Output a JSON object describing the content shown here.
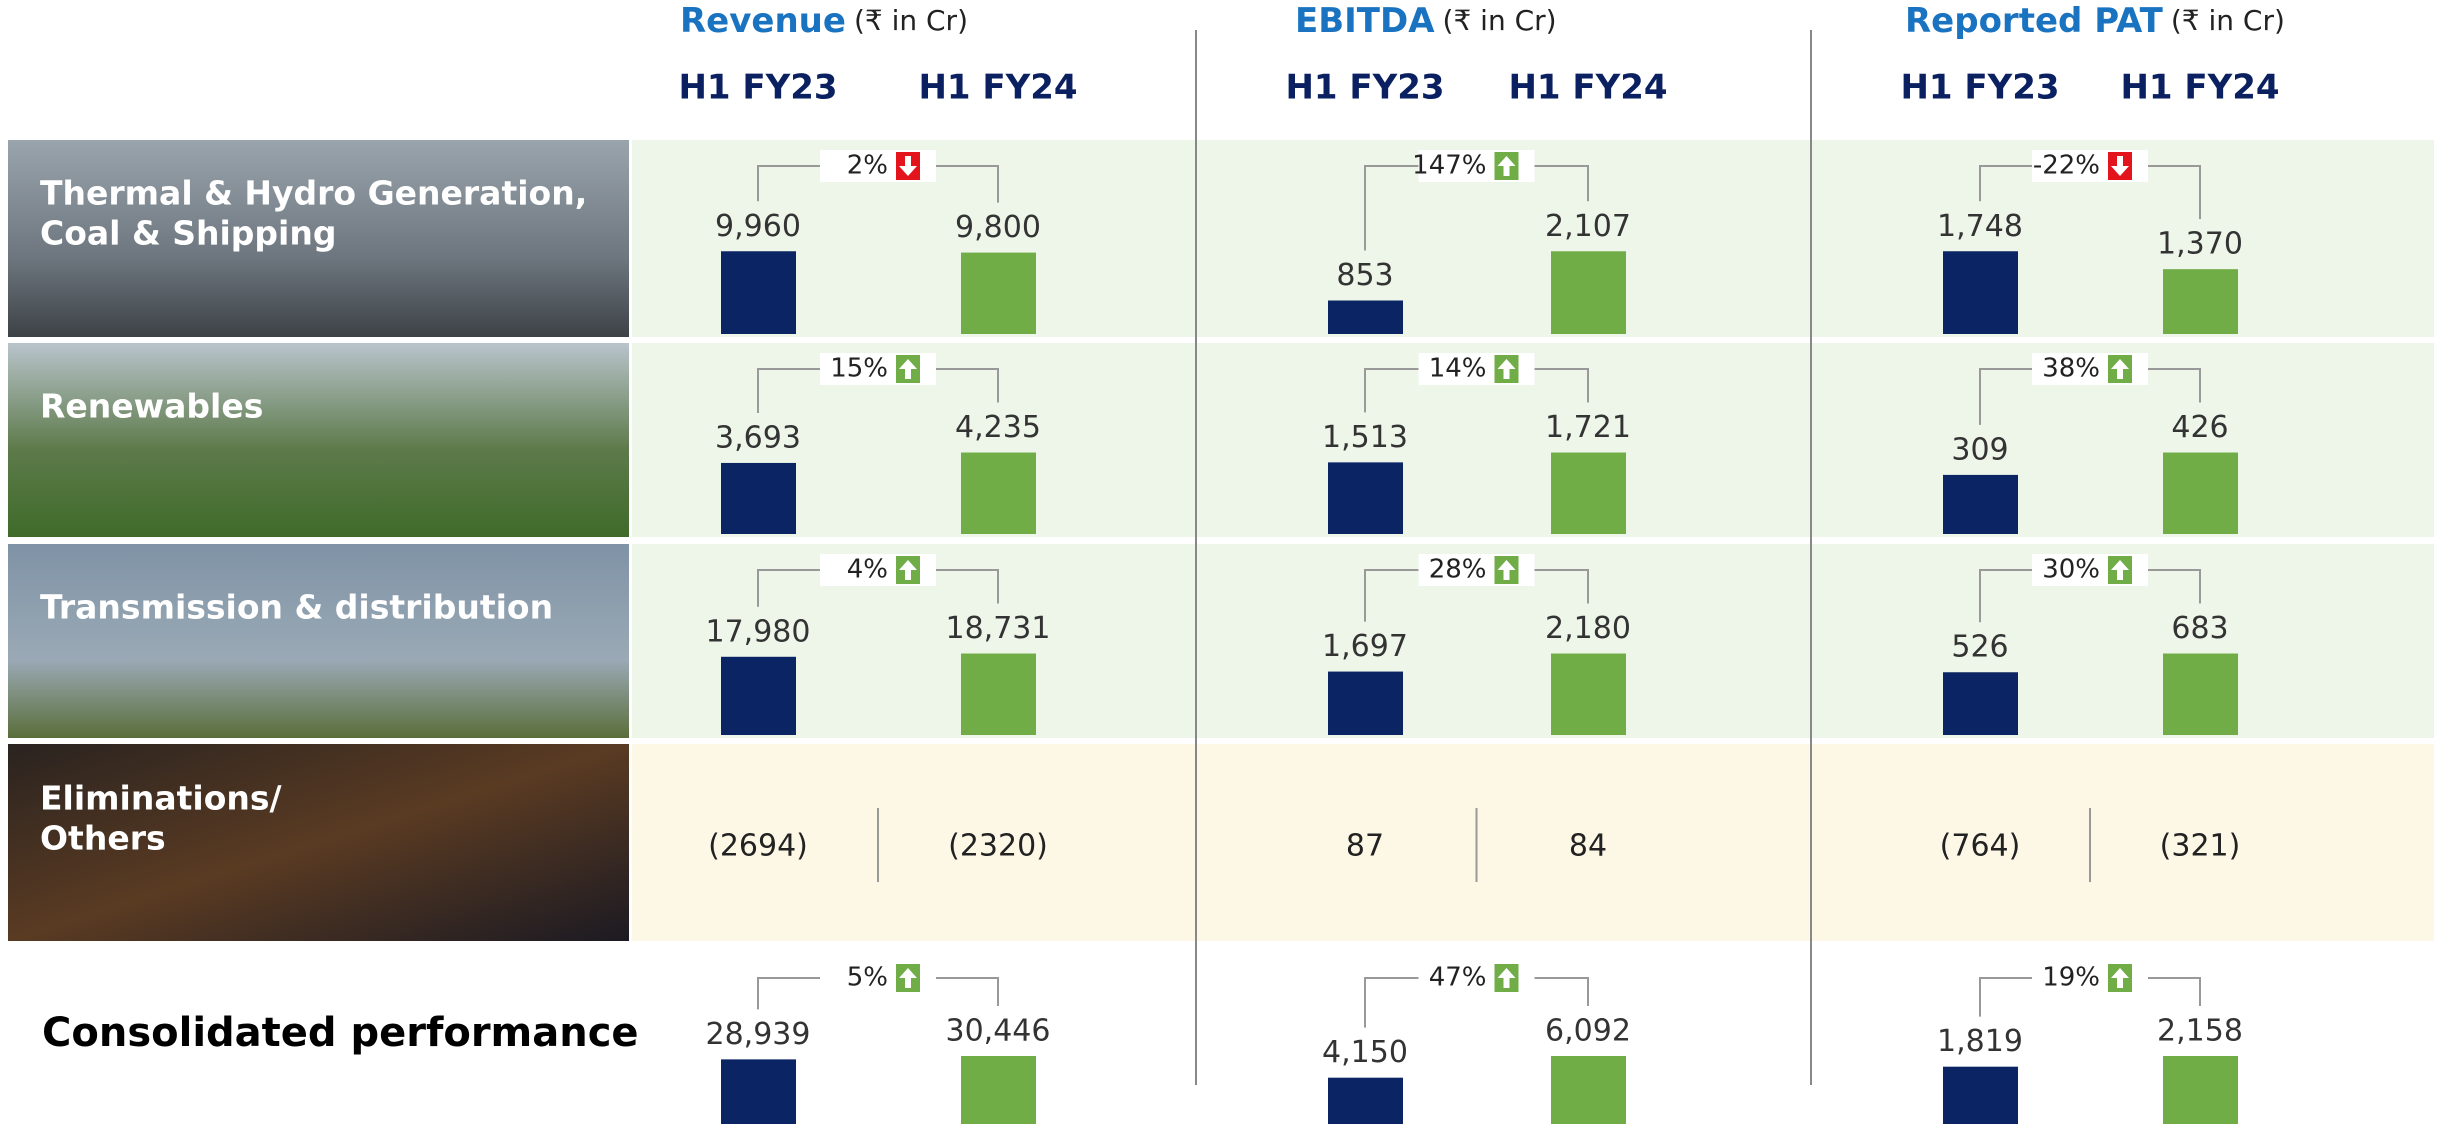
{
  "columns": [
    {
      "title": "Revenue",
      "unit": "(₹ in Cr)",
      "periods": [
        "H1 FY23",
        "H1 FY24"
      ]
    },
    {
      "title": "EBITDA",
      "unit": "(₹ in Cr)",
      "periods": [
        "H1 FY23",
        "H1 FY24"
      ]
    },
    {
      "title": "Reported PAT",
      "unit": "(₹ in Cr)",
      "periods": [
        "H1 FY23",
        "H1 FY24"
      ]
    }
  ],
  "segments": [
    {
      "label": [
        "Thermal & Hydro Generation,",
        "Coal & Shipping"
      ],
      "metrics": [
        {
          "values": [
            9960,
            9800
          ],
          "value_labels": [
            "9,960",
            "9,800"
          ],
          "change": "2%",
          "direction": "down"
        },
        {
          "values": [
            853,
            2107
          ],
          "value_labels": [
            "853",
            "2,107"
          ],
          "change": "147%",
          "direction": "up"
        },
        {
          "values": [
            1748,
            1370
          ],
          "value_labels": [
            "1,748",
            "1,370"
          ],
          "change": "-22%",
          "direction": "down"
        }
      ]
    },
    {
      "label": [
        "Renewables"
      ],
      "metrics": [
        {
          "values": [
            3693,
            4235
          ],
          "value_labels": [
            "3,693",
            "4,235"
          ],
          "change": "15%",
          "direction": "up"
        },
        {
          "values": [
            1513,
            1721
          ],
          "value_labels": [
            "1,513",
            "1,721"
          ],
          "change": "14%",
          "direction": "up"
        },
        {
          "values": [
            309,
            426
          ],
          "value_labels": [
            "309",
            "426"
          ],
          "change": "38%",
          "direction": "up"
        }
      ]
    },
    {
      "label": [
        "Transmission & distribution"
      ],
      "metrics": [
        {
          "values": [
            17980,
            18731
          ],
          "value_labels": [
            "17,980",
            "18,731"
          ],
          "change": "4%",
          "direction": "up"
        },
        {
          "values": [
            1697,
            2180
          ],
          "value_labels": [
            "1,697",
            "2,180"
          ],
          "change": "28%",
          "direction": "up"
        },
        {
          "values": [
            526,
            683
          ],
          "value_labels": [
            "526",
            "683"
          ],
          "change": "30%",
          "direction": "up"
        }
      ]
    }
  ],
  "others": {
    "label": [
      "Eliminations/",
      "Others"
    ],
    "values": [
      [
        "(2694)",
        "(2320)"
      ],
      [
        "87",
        "84"
      ],
      [
        "(764)",
        "(321)"
      ]
    ]
  },
  "consolidated": {
    "label": "Consolidated performance",
    "metrics": [
      {
        "values": [
          28939,
          30446
        ],
        "value_labels": [
          "28,939",
          "30,446"
        ],
        "change": "5%",
        "direction": "up"
      },
      {
        "values": [
          4150,
          6092
        ],
        "value_labels": [
          "4,150",
          "6,092"
        ],
        "change": "47%",
        "direction": "up"
      },
      {
        "values": [
          1819,
          2158
        ],
        "value_labels": [
          "1,819",
          "2,158"
        ],
        "change": "19%",
        "direction": "up"
      }
    ]
  }
}
